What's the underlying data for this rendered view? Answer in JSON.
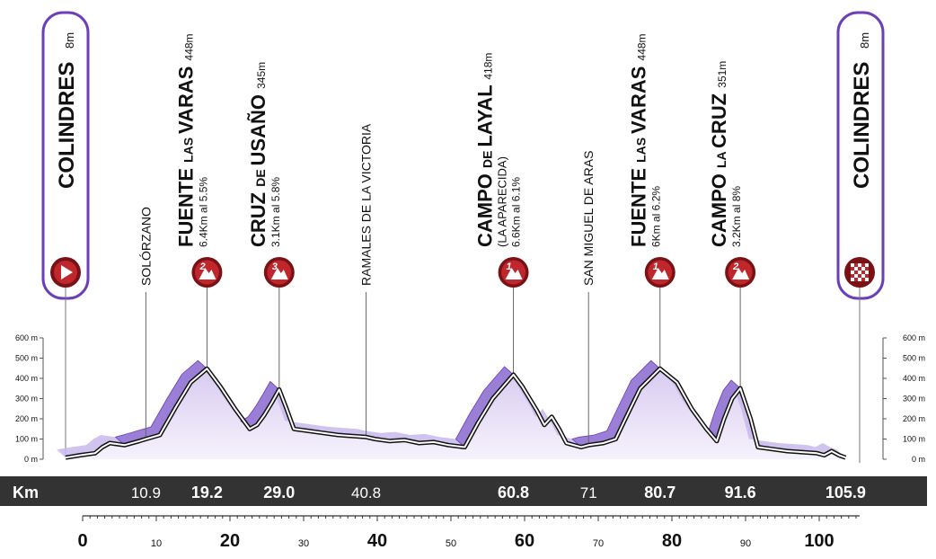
{
  "colors": {
    "profile_fill": "#9b7fd6",
    "profile_fill_dark": "#6a3fb8",
    "profile_side": "#c9b8ec",
    "profile_line": "#111111",
    "area_fill": "#ece5f7",
    "marker": "#c0272d",
    "marker_ring": "#7a1114",
    "frame": "#6a3fb8",
    "bar": "#333333",
    "bar_text": "#ffffff",
    "text": "#111111"
  },
  "km_bar": {
    "label": "Km",
    "values": [
      "10.9",
      "19.2",
      "29.0",
      "40.8",
      "60.8",
      "71",
      "80.7",
      "91.6",
      "105.9"
    ]
  },
  "start_label": {
    "name": "COLINDRES",
    "alt": "8m",
    "icon": "play-icon"
  },
  "finish_label": {
    "name": "COLINDRES",
    "alt": "8m",
    "icon": "checkered-flag-icon"
  },
  "towns": [
    {
      "name": "SOLÓRZANO",
      "km": 10.9
    },
    {
      "name": "RAMALES DE LA VICTORIA",
      "km": 40.8
    },
    {
      "name": "SAN MIGUEL DE ARAS",
      "km": 71
    }
  ],
  "climbs": [
    {
      "km": 19.2,
      "cat": "2",
      "big1": "FUENTE",
      "small": "LAS",
      "big2": "VARAS",
      "alt": "448m",
      "line2": "",
      "detail": "6.4Km al 5.5%"
    },
    {
      "km": 29.0,
      "cat": "3",
      "big1": "CRUZ",
      "small": "DE",
      "big2": "USAÑO",
      "alt": "345m",
      "line2": "",
      "detail": "3.1Km al 5.8%"
    },
    {
      "km": 60.8,
      "cat": "1",
      "big1": "CAMPO",
      "small": "DE",
      "big2": "LAYAL",
      "alt": "418m",
      "line2": "(LA APARECIDA)",
      "detail": "6.6Km al 6.1%"
    },
    {
      "km": 80.7,
      "cat": "1",
      "big1": "FUENTE",
      "small": "LAS",
      "big2": "VARAS",
      "alt": "448m",
      "line2": "",
      "detail": "6Km al 6.2%"
    },
    {
      "km": 91.6,
      "cat": "2",
      "big1": "CAMPO",
      "small": "LA",
      "big2": "CRUZ",
      "alt": "351m",
      "line2": "",
      "detail": "3.2Km al 8%"
    }
  ],
  "chart_data": {
    "type": "area",
    "xlabel": "",
    "ylabel": "",
    "xlim": [
      0,
      106
    ],
    "ylim": [
      0,
      600
    ],
    "y_ticks": [
      "0 m",
      "100 m",
      "200 m",
      "300 m",
      "400 m",
      "500 m",
      "600 m"
    ],
    "x_ticks": [
      0,
      10,
      20,
      30,
      40,
      50,
      60,
      70,
      80,
      90,
      100
    ],
    "x_tick_labels": [
      "0",
      "10",
      "20",
      "30",
      "40",
      "50",
      "60",
      "70",
      "80",
      "90",
      "100"
    ],
    "x_major": [
      0,
      20,
      40,
      60,
      80,
      100
    ],
    "series": [
      {
        "km": [
          0,
          2,
          4,
          5,
          6,
          8,
          10,
          10.9,
          12.8,
          15,
          17,
          19.2,
          21,
          23,
          25,
          26,
          27,
          28,
          29,
          30,
          31,
          33,
          35,
          37,
          40.8,
          42,
          44,
          46,
          48,
          50,
          52,
          54.2,
          56,
          58,
          60.8,
          62,
          64,
          65,
          66,
          67,
          68,
          70,
          71,
          73,
          74.7,
          76,
          78,
          80.7,
          83,
          85,
          87,
          88.4,
          89.4,
          90.5,
          91.6,
          93,
          94,
          96,
          98,
          100,
          102,
          103,
          104,
          105,
          105.9
        ],
        "alt": [
          8,
          20,
          30,
          60,
          80,
          70,
          90,
          100,
          120,
          260,
          380,
          448,
          360,
          250,
          150,
          170,
          220,
          280,
          345,
          250,
          150,
          140,
          130,
          120,
          110,
          100,
          90,
          95,
          80,
          85,
          70,
          60,
          180,
          300,
          418,
          360,
          240,
          170,
          210,
          150,
          80,
          60,
          70,
          80,
          100,
          200,
          350,
          448,
          380,
          250,
          150,
          90,
          200,
          300,
          351,
          200,
          60,
          50,
          40,
          35,
          30,
          20,
          40,
          20,
          8
        ]
      }
    ]
  }
}
